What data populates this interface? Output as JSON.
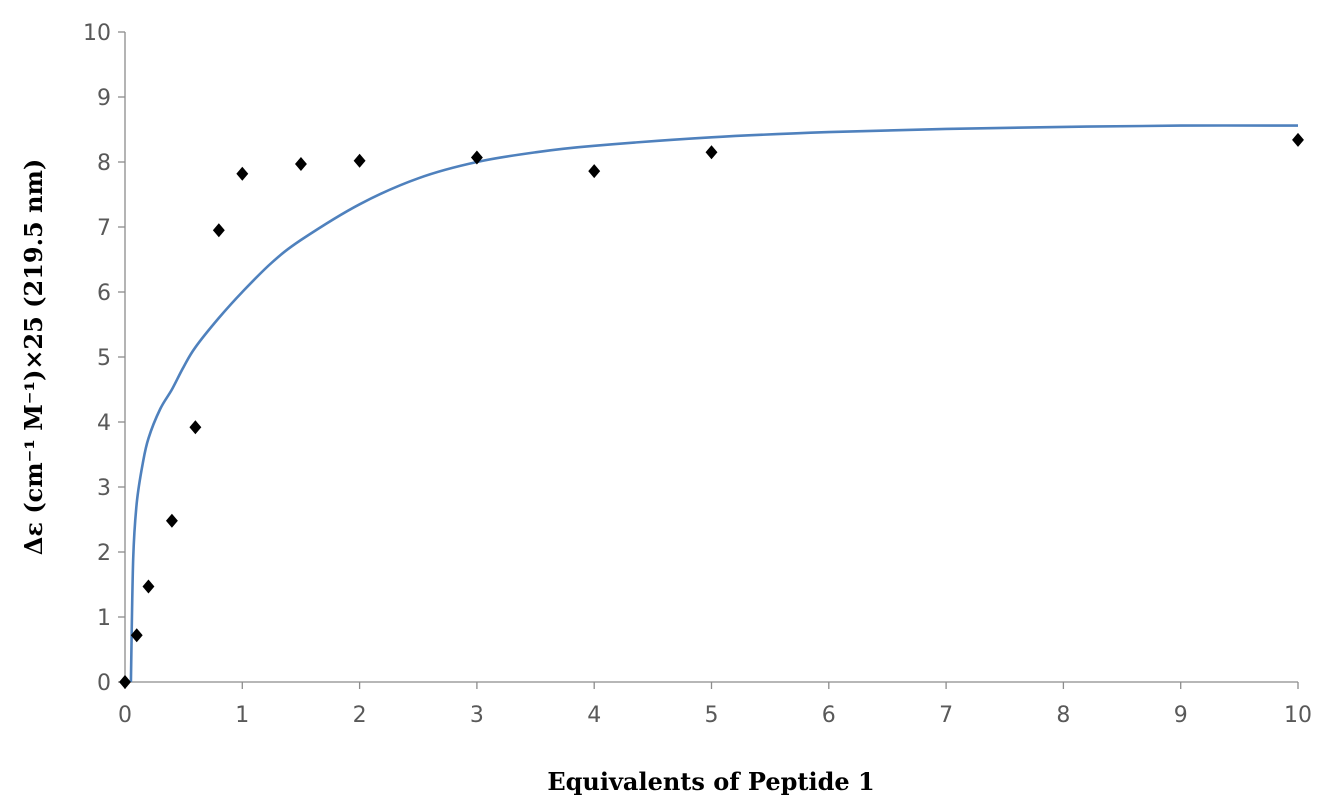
{
  "chart_data": {
    "type": "scatter",
    "title": "",
    "xlabel": "Equivalents of Peptide 1",
    "ylabel": "Δε (cm⁻¹ M⁻¹)×25 (219.5 nm)",
    "xlim": [
      0,
      10
    ],
    "ylim": [
      0,
      10
    ],
    "x_ticks": [
      "0",
      "1",
      "2",
      "3",
      "4",
      "5",
      "6",
      "7",
      "8",
      "9",
      "10"
    ],
    "y_ticks": [
      "0",
      "1",
      "2",
      "3",
      "4",
      "5",
      "6",
      "7",
      "8",
      "9",
      "10"
    ],
    "grid": false,
    "legend": "none",
    "series": [
      {
        "kind": "points",
        "marker": "diamond",
        "color": "#000000",
        "x": [
          0,
          0.1,
          0.2,
          0.4,
          0.6,
          0.8,
          1,
          1.5,
          2,
          3,
          4,
          5,
          10
        ],
        "y": [
          0,
          0.72,
          1.47,
          2.48,
          3.92,
          6.95,
          7.82,
          7.97,
          8.02,
          8.07,
          7.86,
          8.15,
          8.34
        ]
      },
      {
        "kind": "fit-line",
        "color": "#4f81bd",
        "x": [
          0.05,
          0.07,
          0.1,
          0.15,
          0.2,
          0.3,
          0.4,
          0.5,
          0.6,
          0.8,
          1,
          1.25,
          1.5,
          2,
          2.5,
          3,
          3.5,
          4,
          5,
          6,
          7,
          8,
          9,
          10
        ],
        "y": [
          0,
          1.9,
          2.75,
          3.35,
          3.75,
          4.2,
          4.5,
          4.85,
          5.15,
          5.6,
          6.0,
          6.45,
          6.8,
          7.35,
          7.75,
          8.0,
          8.15,
          8.25,
          8.38,
          8.46,
          8.51,
          8.54,
          8.56,
          8.56
        ]
      }
    ]
  }
}
